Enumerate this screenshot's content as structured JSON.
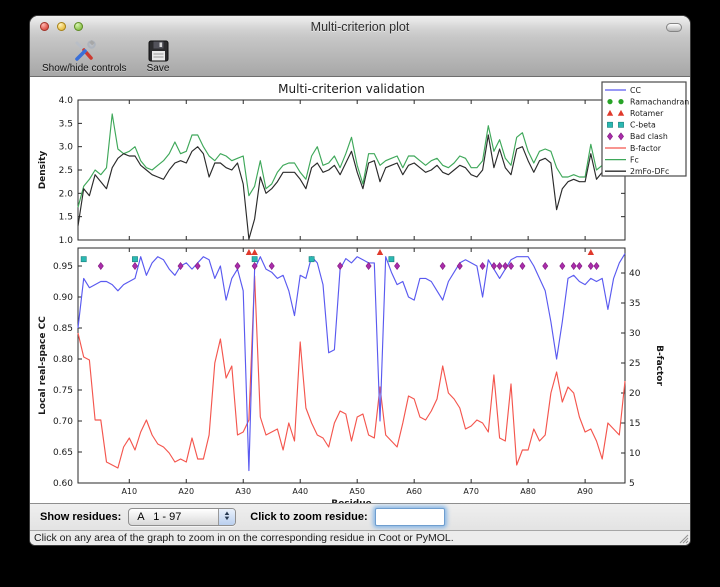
{
  "window": {
    "title": "Multi-criterion plot"
  },
  "toolbar": {
    "items": [
      {
        "icon": "tools-icon",
        "label": "Show/hide controls"
      },
      {
        "icon": "save-icon",
        "label": "Save"
      }
    ]
  },
  "controls": {
    "show_label": "Show residues:",
    "range_value": "A   1 - 97",
    "zoom_label": "Click to zoom residue:",
    "zoom_input_value": ""
  },
  "status": {
    "message": "Click on any area of the graph to zoom in on the corresponding residue in Coot or PyMOL."
  },
  "colors": {
    "cc": "#5a5af0",
    "b_factor": "#f4564e",
    "fc": "#3fa85a",
    "two_mfo_dfc": "#2b2b2b",
    "ramachandran": "#27a327",
    "rotamer": "#e0392b",
    "c_beta": "#2ab8b2",
    "bad_clash": "#aa2caa",
    "spine": "#2a2a2a",
    "focus_ring": "#6f9ecf"
  },
  "chart_data": [
    {
      "type": "line",
      "title": "Multi-criterion validation",
      "ylabel": "Density",
      "ylim": [
        1.0,
        4.0
      ],
      "yticks": [
        "1.0",
        "1.5",
        "2.0",
        "2.5",
        "3.0",
        "3.5",
        "4.0"
      ],
      "x_range": [
        1,
        97
      ],
      "xticks": [
        10,
        20,
        30,
        40,
        50,
        60,
        70,
        80,
        90
      ],
      "grid": false,
      "series": [
        {
          "name": "Fc",
          "color": "#3fa85a",
          "values": [
            1.7,
            2.15,
            2.3,
            2.5,
            2.4,
            2.55,
            3.7,
            2.95,
            2.85,
            2.9,
            3.0,
            2.7,
            2.55,
            2.5,
            2.6,
            2.7,
            2.85,
            3.1,
            2.85,
            2.9,
            3.25,
            3.25,
            3.0,
            2.8,
            2.7,
            2.85,
            2.8,
            2.7,
            2.75,
            2.8,
            1.95,
            2.15,
            2.7,
            2.1,
            2.2,
            2.45,
            2.6,
            2.65,
            2.65,
            2.45,
            2.3,
            2.8,
            3.0,
            2.6,
            2.65,
            2.8,
            2.55,
            2.85,
            3.2,
            2.6,
            2.2,
            2.85,
            2.85,
            2.6,
            2.7,
            2.75,
            2.8,
            2.55,
            2.8,
            2.8,
            2.7,
            2.6,
            2.7,
            2.75,
            2.6,
            2.55,
            2.65,
            2.8,
            2.75,
            2.55,
            2.55,
            2.7,
            3.45,
            2.9,
            3.15,
            2.75,
            2.6,
            3.2,
            3.3,
            2.9,
            2.65,
            2.9,
            2.95,
            2.9,
            2.55,
            2.35,
            2.35,
            2.4,
            2.35,
            2.35,
            3.05,
            2.5,
            2.6,
            2.85,
            2.85,
            2.65,
            3.4
          ]
        },
        {
          "name": "2mFo-DFc",
          "color": "#2b2b2b",
          "values": [
            1.3,
            2.1,
            1.95,
            2.4,
            2.25,
            2.1,
            2.55,
            2.75,
            2.85,
            2.8,
            2.8,
            2.6,
            2.5,
            2.4,
            2.35,
            2.3,
            2.5,
            2.65,
            2.7,
            2.65,
            2.9,
            3.0,
            2.85,
            2.35,
            2.65,
            2.65,
            2.55,
            2.5,
            2.65,
            2.2,
            1.02,
            1.45,
            2.35,
            2.0,
            2.1,
            2.25,
            2.45,
            2.45,
            2.45,
            2.3,
            2.1,
            2.55,
            2.65,
            2.45,
            2.5,
            2.6,
            2.4,
            2.65,
            2.9,
            2.45,
            2.1,
            2.65,
            2.7,
            2.25,
            2.55,
            2.6,
            2.65,
            2.4,
            2.6,
            2.65,
            2.55,
            2.45,
            2.5,
            2.6,
            2.45,
            2.4,
            2.5,
            2.6,
            2.55,
            2.4,
            2.35,
            2.5,
            3.25,
            2.55,
            2.95,
            2.55,
            2.4,
            2.95,
            3.0,
            2.7,
            2.45,
            2.7,
            2.75,
            2.65,
            1.65,
            2.1,
            2.25,
            2.3,
            2.25,
            2.25,
            2.85,
            2.3,
            2.45,
            2.6,
            2.55,
            2.4,
            3.0
          ]
        }
      ]
    },
    {
      "type": "line",
      "xlabel": "Residue",
      "ylabel_left": "Local real-space CC",
      "ylabel_right": "B-factor",
      "ylim_left": [
        0.6,
        0.979
      ],
      "yticks_left": [
        "0.60",
        "0.65",
        "0.70",
        "0.75",
        "0.80",
        "0.85",
        "0.90",
        "0.95"
      ],
      "ylim_right": [
        5,
        44.2
      ],
      "yticks_right": [
        "5",
        "10",
        "15",
        "20",
        "25",
        "30",
        "35",
        "40"
      ],
      "x_range": [
        1,
        97
      ],
      "xticks": [
        10,
        20,
        30,
        40,
        50,
        60,
        70,
        80,
        90
      ],
      "xtick_labels": [
        "A10",
        "A20",
        "A30",
        "A40",
        "A50",
        "A60",
        "A70",
        "A80",
        "A90"
      ],
      "grid": false,
      "series": [
        {
          "name": "CC",
          "axis": "left",
          "color": "#5a5af0",
          "values": [
            0.85,
            0.93,
            0.915,
            0.92,
            0.925,
            0.925,
            0.92,
            0.91,
            0.92,
            0.925,
            0.93,
            0.965,
            0.935,
            0.955,
            0.965,
            0.96,
            0.945,
            0.935,
            0.95,
            0.955,
            0.945,
            0.955,
            0.965,
            0.96,
            0.93,
            0.95,
            0.895,
            0.93,
            0.945,
            0.91,
            0.62,
            0.945,
            0.965,
            0.945,
            0.94,
            0.93,
            0.935,
            0.91,
            0.87,
            0.935,
            0.93,
            0.965,
            0.955,
            0.92,
            0.81,
            0.815,
            0.945,
            0.962,
            0.955,
            0.965,
            0.96,
            0.955,
            0.955,
            0.7,
            0.965,
            0.94,
            0.92,
            0.925,
            0.9,
            0.895,
            0.93,
            0.93,
            0.925,
            0.91,
            0.895,
            0.925,
            0.94,
            0.955,
            0.96,
            0.955,
            0.95,
            0.9,
            0.96,
            0.945,
            0.93,
            0.945,
            0.96,
            0.965,
            0.965,
            0.965,
            0.95,
            0.93,
            0.91,
            0.86,
            0.8,
            0.86,
            0.93,
            0.935,
            0.925,
            0.92,
            0.93,
            0.925,
            0.93,
            0.88,
            0.93,
            0.955,
            0.97
          ]
        },
        {
          "name": "B-factor",
          "axis": "right",
          "color": "#f4564e",
          "values": [
            30,
            26,
            25.5,
            15.5,
            15.5,
            8.5,
            8,
            7.5,
            11,
            12.5,
            10.5,
            13.5,
            15.5,
            13,
            11.5,
            11,
            10,
            8.5,
            9,
            8.5,
            12.5,
            9,
            9,
            13,
            25,
            29,
            22.5,
            24.5,
            13,
            13.5,
            15.5,
            39.5,
            16,
            13,
            13.5,
            14,
            10.5,
            15,
            12,
            28.5,
            17.5,
            15,
            13,
            12.5,
            11,
            15,
            17,
            16.5,
            12,
            16,
            16.5,
            13,
            12.5,
            21,
            13,
            12,
            11,
            15,
            19.5,
            19,
            16,
            15.5,
            17,
            19,
            24.5,
            20,
            19,
            17.5,
            14,
            14.5,
            15.5,
            15,
            13.5,
            23,
            12.5,
            12,
            21.5,
            8,
            10.5,
            10.5,
            14,
            12,
            13,
            20,
            23.5,
            18.5,
            21,
            20,
            16,
            13.5,
            14,
            12,
            9,
            15,
            14,
            13,
            22
          ]
        }
      ],
      "markers": [
        {
          "name": "Ramachandran",
          "shape": "circle",
          "color": "#27a327",
          "y_cc": 0.972,
          "residues": []
        },
        {
          "name": "Rotamer",
          "shape": "triangle",
          "color": "#e0392b",
          "y_cc": 0.972,
          "residues": [
            31,
            32,
            54,
            91
          ]
        },
        {
          "name": "C-beta",
          "shape": "square",
          "color": "#2ab8b2",
          "y_cc": 0.961,
          "residues": [
            2,
            11,
            32,
            42,
            56
          ]
        },
        {
          "name": "Bad clash",
          "shape": "diamond",
          "color": "#aa2caa",
          "y_cc": 0.95,
          "residues": [
            5,
            11,
            19,
            22,
            29,
            32,
            35,
            47,
            52,
            57,
            65,
            68,
            72,
            74,
            75,
            76,
            77,
            79,
            83,
            86,
            88,
            89,
            91,
            92
          ]
        }
      ],
      "legend": {
        "position": "upper right",
        "entries": [
          {
            "label": "CC",
            "type": "line",
            "color": "#5a5af0"
          },
          {
            "label": "Ramachandran",
            "type": "circle",
            "color": "#27a327"
          },
          {
            "label": "Rotamer",
            "type": "triangle",
            "color": "#e0392b"
          },
          {
            "label": "C-beta",
            "type": "square",
            "color": "#2ab8b2"
          },
          {
            "label": "Bad clash",
            "type": "diamond",
            "color": "#aa2caa"
          },
          {
            "label": "B-factor",
            "type": "line",
            "color": "#f4564e"
          },
          {
            "label": "Fc",
            "type": "line",
            "color": "#3fa85a"
          },
          {
            "label": "2mFo-DFc",
            "type": "line",
            "color": "#2b2b2b"
          }
        ]
      }
    }
  ]
}
